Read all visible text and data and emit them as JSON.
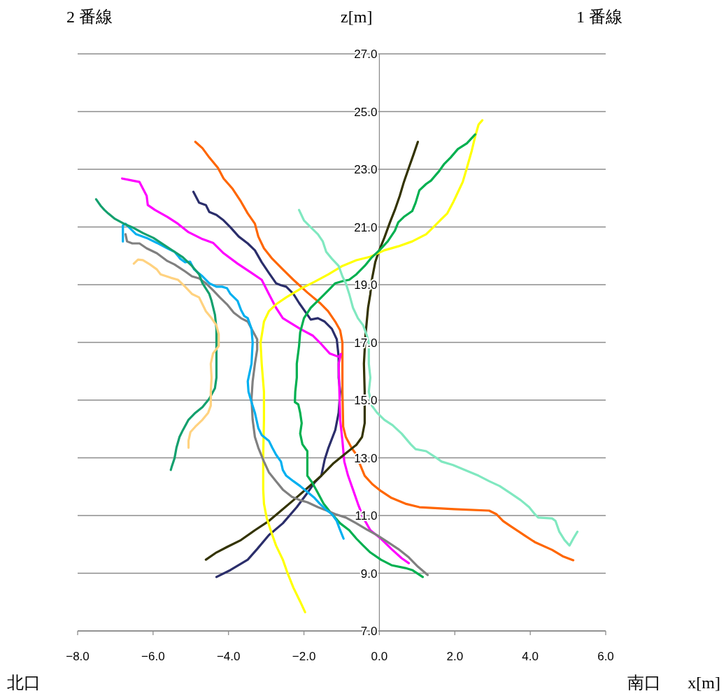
{
  "chart_data": {
    "type": "line",
    "xlabel": "x[m]",
    "ylabel": "z[m]",
    "annotations": [
      "2 番線",
      "1 番線",
      "北口",
      "南口"
    ],
    "xlim": [
      -8,
      6
    ],
    "ylim": [
      7,
      27
    ],
    "xticks": [
      {
        "value": -8,
        "label": "−8.0"
      },
      {
        "value": -6,
        "label": "−6.0"
      },
      {
        "value": -4,
        "label": "−4.0"
      },
      {
        "value": -2,
        "label": "−2.0"
      },
      {
        "value": 0,
        "label": "0.0"
      },
      {
        "value": 2,
        "label": "2.0"
      },
      {
        "value": 4,
        "label": "4.0"
      },
      {
        "value": 6,
        "label": "6.0"
      }
    ],
    "yticks": [
      {
        "value": 7,
        "label": "7.0"
      },
      {
        "value": 9,
        "label": "9.0"
      },
      {
        "value": 11,
        "label": "11.0"
      },
      {
        "value": 13,
        "label": "13.0"
      },
      {
        "value": 15,
        "label": "15.0"
      },
      {
        "value": 17,
        "label": "17.0"
      },
      {
        "value": 19,
        "label": "19.0"
      },
      {
        "value": 21,
        "label": "21.0"
      },
      {
        "value": 23,
        "label": "23.0"
      },
      {
        "value": 25,
        "label": "25.0"
      },
      {
        "value": 27,
        "label": "27.0"
      }
    ],
    "grid": "y",
    "marker": "none",
    "line_style": "solid",
    "series": [
      {
        "color": "#ff6600",
        "x": [
          -4.88,
          -4.69,
          -4.51,
          -4.28,
          -4.13,
          -3.89,
          -3.67,
          -3.49,
          -3.3,
          -3.21,
          -3.06,
          -2.84,
          -2.56,
          -2.28,
          -1.91,
          -1.58,
          -1.36,
          -1.17,
          -1.04,
          -0.98,
          -0.98,
          -0.98,
          -0.96,
          -0.89,
          -0.74,
          -0.61,
          -0.52,
          -0.39,
          -0.19,
          0.04,
          0.32,
          0.69,
          1.06,
          1.98,
          2.91,
          3.1,
          3.28,
          3.47,
          3.84,
          4.12,
          4.58,
          4.86,
          5.14
        ],
        "values": [
          23.95,
          23.73,
          23.41,
          23.05,
          22.68,
          22.32,
          21.88,
          21.47,
          21.11,
          20.67,
          20.26,
          19.9,
          19.53,
          19.17,
          18.73,
          18.37,
          18.08,
          17.72,
          17.42,
          16.99,
          16.26,
          15.29,
          14.08,
          13.72,
          13.35,
          13.11,
          12.79,
          12.38,
          12.09,
          11.85,
          11.61,
          11.41,
          11.29,
          11.22,
          11.17,
          11.05,
          10.81,
          10.64,
          10.32,
          10.08,
          9.81,
          9.59,
          9.45
        ]
      },
      {
        "color": "#2b2e6b",
        "x": [
          -4.93,
          -4.78,
          -4.6,
          -4.51,
          -4.32,
          -4.13,
          -3.95,
          -3.73,
          -3.49,
          -3.3,
          -3.12,
          -2.93,
          -2.74,
          -2.61,
          -2.47,
          -2.28,
          -2.13,
          -1.91,
          -1.82,
          -1.63,
          -1.45,
          -1.26,
          -1.13,
          -1.08,
          -1.08,
          -1.04,
          -1.08,
          -1.17,
          -1.35,
          -1.45,
          -1.54,
          -1.72,
          -1.91,
          -2.19,
          -2.56,
          -2.93,
          -3.24,
          -3.49,
          -3.95,
          -4.32
        ],
        "values": [
          22.22,
          21.84,
          21.76,
          21.52,
          21.42,
          21.23,
          20.99,
          20.67,
          20.43,
          20.19,
          19.78,
          19.41,
          19.05,
          18.98,
          18.93,
          18.68,
          18.37,
          17.96,
          17.79,
          17.84,
          17.72,
          17.47,
          17.11,
          16.5,
          15.78,
          15.29,
          14.56,
          13.96,
          13.35,
          12.94,
          12.38,
          12.14,
          11.78,
          11.29,
          10.73,
          10.32,
          9.84,
          9.47,
          9.11,
          8.87
        ]
      },
      {
        "color": "#ff00ff",
        "x": [
          -6.82,
          -6.55,
          -6.36,
          -6.17,
          -6.14,
          -5.95,
          -5.62,
          -5.34,
          -5.06,
          -4.69,
          -4.41,
          -4.13,
          -3.76,
          -3.39,
          -3.12,
          -2.93,
          -2.74,
          -2.56,
          -2.1,
          -1.76,
          -1.54,
          -1.32,
          -1.08,
          -1.02,
          -1.08,
          -1.06,
          -1.04,
          -0.98,
          -0.93,
          -0.83,
          -0.7,
          -0.57,
          -0.43,
          -0.24,
          0.04,
          0.32,
          0.59,
          0.78
        ],
        "values": [
          22.68,
          22.61,
          22.56,
          22.08,
          21.76,
          21.59,
          21.35,
          21.11,
          20.82,
          20.58,
          20.45,
          20.09,
          19.73,
          19.41,
          19.17,
          18.68,
          18.2,
          17.84,
          17.47,
          17.23,
          16.94,
          16.62,
          16.5,
          16.6,
          16.26,
          15.29,
          14.32,
          13.59,
          12.87,
          12.38,
          11.9,
          11.41,
          10.93,
          10.49,
          10.2,
          9.84,
          9.52,
          9.35
        ]
      },
      {
        "color": "#333300",
        "x": [
          -4.6,
          -4.32,
          -4.04,
          -3.67,
          -3.3,
          -2.93,
          -2.65,
          -2.28,
          -1.91,
          -1.54,
          -1.21,
          -0.89,
          -0.61,
          -0.46,
          -0.39,
          -0.39,
          -0.41,
          -0.37,
          -0.3,
          -0.24,
          -0.2,
          -0.11,
          -0.02,
          0.13,
          0.28,
          0.41,
          0.54,
          0.65,
          0.78,
          0.91,
          1.02
        ],
        "values": [
          9.47,
          9.72,
          9.91,
          10.15,
          10.49,
          10.81,
          11.12,
          11.53,
          11.95,
          12.38,
          12.82,
          13.16,
          13.45,
          13.72,
          14.2,
          15.29,
          16.26,
          17.23,
          18.2,
          18.68,
          19.17,
          19.78,
          20.14,
          20.62,
          21.16,
          21.59,
          22.08,
          22.56,
          23.05,
          23.53,
          23.95
        ]
      },
      {
        "color": "#ffff00",
        "x": [
          -1.97,
          -2.1,
          -2.28,
          -2.43,
          -2.56,
          -2.74,
          -2.87,
          -2.99,
          -3.06,
          -3.08,
          -3.08,
          -3.06,
          -3.06,
          -3.12,
          -3.15,
          -3.06,
          -2.93,
          -2.74,
          -2.47,
          -2.1,
          -1.72,
          -1.35,
          -0.98,
          -0.61,
          -0.24,
          0.13,
          0.5,
          0.87,
          1.24,
          1.43,
          1.61,
          1.8,
          1.95,
          2.08,
          2.21,
          2.32,
          2.45,
          2.54,
          2.63,
          2.73
        ],
        "values": [
          7.65,
          8.02,
          8.5,
          8.99,
          9.47,
          9.96,
          10.44,
          10.93,
          11.41,
          11.9,
          13.11,
          14.32,
          15.29,
          16.26,
          16.99,
          17.72,
          18.08,
          18.32,
          18.56,
          18.85,
          19.1,
          19.36,
          19.65,
          19.85,
          19.97,
          20.19,
          20.33,
          20.5,
          20.75,
          20.99,
          21.23,
          21.47,
          21.84,
          22.2,
          22.56,
          23.05,
          23.65,
          24.14,
          24.55,
          24.7
        ]
      },
      {
        "color": "#00b050",
        "x": [
          1.15,
          0.87,
          0.69,
          0.32,
          0.04,
          -0.24,
          -0.43,
          -0.61,
          -0.8,
          -1.04,
          -1.26,
          -1.48,
          -1.63,
          -1.78,
          -1.91,
          -1.91,
          -1.91,
          -2.04,
          -2.1,
          -2.06,
          -2.1,
          -2.15,
          -2.24,
          -2.23,
          -2.19,
          -2.19,
          -2.13,
          -2.1,
          -2.0,
          -1.82,
          -1.54,
          -1.35,
          -1.17,
          -0.98,
          -0.8,
          -0.61,
          -0.39,
          -0.2,
          0.0,
          0.22,
          0.41,
          0.5,
          0.65,
          0.87,
          0.96,
          1.06,
          1.24,
          1.37,
          1.58,
          1.71,
          1.89,
          2.08,
          2.32,
          2.54
        ],
        "values": [
          8.87,
          9.11,
          9.18,
          9.28,
          9.47,
          9.72,
          9.96,
          10.2,
          10.49,
          10.73,
          11.05,
          11.41,
          11.78,
          12.14,
          12.38,
          12.87,
          13.23,
          13.47,
          13.84,
          14.2,
          14.56,
          14.85,
          14.93,
          15.29,
          15.78,
          16.26,
          16.87,
          17.35,
          17.84,
          18.2,
          18.56,
          18.81,
          19.05,
          19.12,
          19.17,
          19.36,
          19.65,
          19.95,
          20.19,
          20.5,
          20.87,
          21.16,
          21.35,
          21.55,
          21.84,
          22.27,
          22.49,
          22.61,
          22.93,
          23.17,
          23.41,
          23.7,
          23.9,
          24.21
        ]
      },
      {
        "color": "#80e8c0",
        "x": [
          -2.13,
          -2.0,
          -1.82,
          -1.63,
          -1.5,
          -1.41,
          -1.26,
          -1.08,
          -0.98,
          -0.89,
          -0.8,
          -0.7,
          -0.57,
          -0.43,
          -0.33,
          -0.28,
          -0.28,
          -0.24,
          -0.28,
          -0.2,
          -0.06,
          0.13,
          0.35,
          0.59,
          0.83,
          0.96,
          1.24,
          1.52,
          1.65,
          1.95,
          2.26,
          2.63,
          2.91,
          3.19,
          3.47,
          3.75,
          3.97,
          4.12,
          4.21,
          4.58,
          4.67,
          4.77,
          4.91,
          5.04,
          5.14,
          5.25
        ],
        "values": [
          21.59,
          21.23,
          20.99,
          20.75,
          20.5,
          20.14,
          19.9,
          19.65,
          19.29,
          19.05,
          18.68,
          18.2,
          17.84,
          17.59,
          17.23,
          16.99,
          16.26,
          15.78,
          15.29,
          14.81,
          14.56,
          14.32,
          14.13,
          13.84,
          13.47,
          13.3,
          13.23,
          12.99,
          12.87,
          12.75,
          12.58,
          12.38,
          12.19,
          12.02,
          11.78,
          11.53,
          11.29,
          11.05,
          10.93,
          10.9,
          10.81,
          10.44,
          10.15,
          9.96,
          10.2,
          10.44
        ]
      },
      {
        "color": "#808080",
        "x": [
          -6.73,
          -6.69,
          -6.55,
          -6.36,
          -6.17,
          -5.9,
          -5.62,
          -5.43,
          -5.15,
          -4.97,
          -4.78,
          -4.6,
          -4.41,
          -4.23,
          -4.04,
          -3.86,
          -3.67,
          -3.49,
          -3.39,
          -3.24,
          -3.24,
          -3.3,
          -3.36,
          -3.39,
          -3.36,
          -3.3,
          -3.21,
          -3.06,
          -2.93,
          -2.74,
          -2.56,
          -2.32,
          -2.1,
          -1.91,
          -1.63,
          -1.39,
          -1.17,
          -0.89,
          -0.61,
          -0.33,
          -0.06,
          0.22,
          0.5,
          0.78,
          1.02,
          1.28
        ],
        "values": [
          20.75,
          20.5,
          20.43,
          20.43,
          20.26,
          20.09,
          19.82,
          19.7,
          19.46,
          19.29,
          19.22,
          19.05,
          18.81,
          18.56,
          18.32,
          18.03,
          17.84,
          17.72,
          17.47,
          17.11,
          16.75,
          16.26,
          15.65,
          15.05,
          14.32,
          13.72,
          13.35,
          12.87,
          12.5,
          12.19,
          11.9,
          11.65,
          11.53,
          11.46,
          11.29,
          11.17,
          11.05,
          10.93,
          10.73,
          10.51,
          10.32,
          10.08,
          9.84,
          9.55,
          9.23,
          8.94
        ]
      },
      {
        "color": "#00b0f0",
        "x": [
          -6.8,
          -6.8,
          -6.73,
          -6.64,
          -6.45,
          -6.17,
          -5.9,
          -5.62,
          -5.43,
          -5.28,
          -5.15,
          -5.02,
          -4.91,
          -4.69,
          -4.51,
          -4.32,
          -4.17,
          -4.04,
          -3.95,
          -3.76,
          -3.67,
          -3.58,
          -3.49,
          -3.39,
          -3.36,
          -3.39,
          -3.49,
          -3.47,
          -3.39,
          -3.3,
          -3.21,
          -3.12,
          -2.93,
          -2.84,
          -2.74,
          -2.61,
          -2.56,
          -2.47,
          -2.28,
          -2.1,
          -1.91,
          -1.72,
          -1.58,
          -1.43,
          -1.26,
          -1.13,
          -1.06,
          -0.95
        ],
        "values": [
          20.5,
          21.06,
          21.11,
          20.99,
          20.75,
          20.62,
          20.45,
          20.26,
          20.14,
          19.9,
          19.78,
          19.8,
          19.53,
          19.29,
          19.05,
          18.93,
          18.93,
          18.88,
          18.68,
          18.44,
          18.13,
          17.91,
          17.84,
          17.47,
          16.99,
          16.26,
          15.65,
          15.29,
          14.93,
          14.56,
          14.03,
          13.79,
          13.59,
          13.35,
          13.11,
          12.87,
          12.58,
          12.38,
          12.19,
          12.02,
          11.82,
          11.61,
          11.41,
          11.22,
          11.05,
          10.81,
          10.56,
          10.2
        ]
      },
      {
        "color": "#14a06e",
        "x": [
          -7.51,
          -7.38,
          -7.29,
          -7.19,
          -7.01,
          -6.77,
          -6.55,
          -6.27,
          -5.99,
          -5.71,
          -5.43,
          -5.21,
          -4.97,
          -4.78,
          -4.69,
          -4.51,
          -4.45,
          -4.36,
          -4.32,
          -4.32,
          -4.32,
          -4.36,
          -4.51,
          -4.69,
          -4.88,
          -5.06,
          -5.21,
          -5.3,
          -5.38,
          -5.43,
          -5.51,
          -5.53
        ],
        "values": [
          21.96,
          21.72,
          21.59,
          21.47,
          21.28,
          21.11,
          20.99,
          20.79,
          20.62,
          20.38,
          20.14,
          19.95,
          19.65,
          19.36,
          19.05,
          18.68,
          18.44,
          17.96,
          17.47,
          16.75,
          15.78,
          15.41,
          15.05,
          14.76,
          14.56,
          14.32,
          13.96,
          13.72,
          13.35,
          12.99,
          12.67,
          12.58
        ]
      },
      {
        "color": "#ffd280",
        "x": [
          -6.51,
          -6.4,
          -6.27,
          -6.08,
          -5.9,
          -5.8,
          -5.53,
          -5.34,
          -5.15,
          -4.97,
          -4.78,
          -4.69,
          -4.6,
          -4.45,
          -4.32,
          -4.26,
          -4.26,
          -4.41,
          -4.47,
          -4.45,
          -4.47,
          -4.47,
          -4.54,
          -4.69,
          -4.88,
          -5.01,
          -5.06,
          -5.06
        ],
        "values": [
          19.73,
          19.87,
          19.85,
          19.7,
          19.53,
          19.36,
          19.24,
          19.17,
          18.93,
          18.68,
          18.56,
          18.32,
          18.08,
          17.84,
          17.59,
          17.28,
          16.87,
          16.62,
          16.26,
          15.78,
          15.29,
          14.81,
          14.56,
          14.32,
          14.08,
          13.89,
          13.59,
          13.35
        ]
      }
    ]
  }
}
